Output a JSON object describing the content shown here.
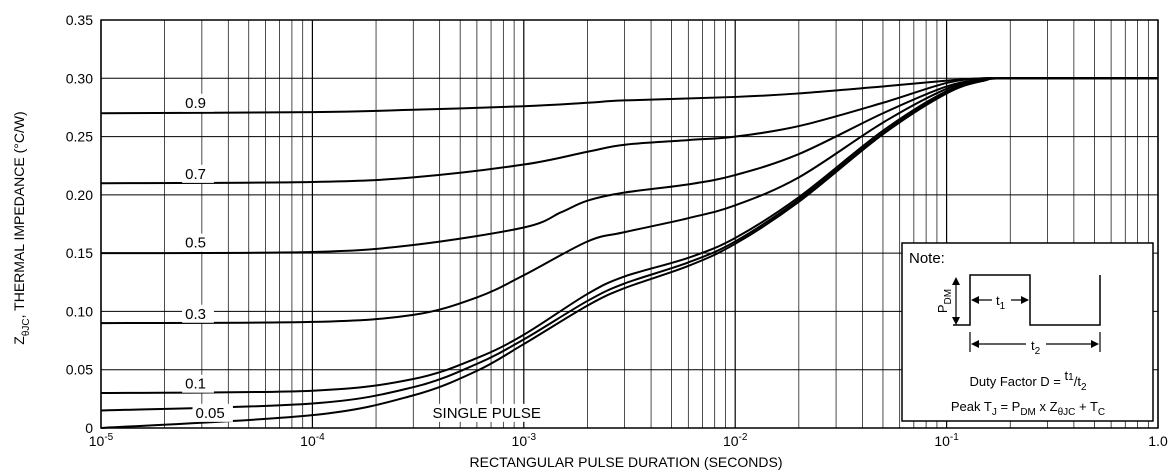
{
  "chart_data": {
    "type": "line",
    "title": "",
    "xlabel": "RECTANGULAR PULSE DURATION (SECONDS)",
    "ylabel": "ZθJC, THERMAL IMPEDANCE (°C/W)",
    "ylabel_parts": {
      "z": "Z",
      "sub": "θJC",
      "rest": ", THERMAL IMPEDANCE (°C/W)"
    },
    "x_scale": "log",
    "xlim": [
      1e-05,
      1.0
    ],
    "ylim": [
      0,
      0.35
    ],
    "grid": true,
    "x_ticks": [
      {
        "value": 1e-05,
        "base": "10",
        "exp": "-5"
      },
      {
        "value": 0.0001,
        "base": "10",
        "exp": "-4"
      },
      {
        "value": 0.001,
        "base": "10",
        "exp": "-3"
      },
      {
        "value": 0.01,
        "base": "10",
        "exp": "-2"
      },
      {
        "value": 0.1,
        "base": "10",
        "exp": "-1"
      },
      {
        "value": 1.0,
        "base": "1.0",
        "exp": ""
      }
    ],
    "y_ticks": [
      {
        "value": 0,
        "label": "0"
      },
      {
        "value": 0.05,
        "label": "0.05"
      },
      {
        "value": 0.1,
        "label": "0.10"
      },
      {
        "value": 0.15,
        "label": "0.15"
      },
      {
        "value": 0.2,
        "label": "0.20"
      },
      {
        "value": 0.25,
        "label": "0.25"
      },
      {
        "value": 0.3,
        "label": "0.30"
      },
      {
        "value": 0.35,
        "label": "0.35"
      }
    ],
    "series": [
      {
        "label": "0.9",
        "label_x": 2.5e-05,
        "label_y": 0.279,
        "x": [
          1e-05,
          0.0001,
          0.0003,
          0.001,
          0.002,
          0.003,
          0.01,
          0.02,
          0.05,
          0.1,
          0.15,
          0.2,
          1.0
        ],
        "y": [
          0.27,
          0.271,
          0.273,
          0.276,
          0.279,
          0.281,
          0.284,
          0.287,
          0.293,
          0.298,
          0.3,
          0.3,
          0.3
        ]
      },
      {
        "label": "0.7",
        "label_x": 2.5e-05,
        "label_y": 0.218,
        "x": [
          1e-05,
          0.0001,
          0.0003,
          0.001,
          0.002,
          0.003,
          0.006,
          0.01,
          0.02,
          0.05,
          0.1,
          0.15,
          0.2,
          1.0
        ],
        "y": [
          0.21,
          0.211,
          0.215,
          0.226,
          0.237,
          0.243,
          0.247,
          0.25,
          0.259,
          0.279,
          0.296,
          0.3,
          0.3,
          0.3
        ]
      },
      {
        "label": "0.5",
        "label_x": 2.5e-05,
        "label_y": 0.159,
        "x": [
          1e-05,
          0.0001,
          0.0003,
          0.001,
          0.0015,
          0.002,
          0.003,
          0.006,
          0.01,
          0.02,
          0.05,
          0.1,
          0.15,
          0.2,
          1.0
        ],
        "y": [
          0.15,
          0.151,
          0.157,
          0.172,
          0.185,
          0.195,
          0.202,
          0.209,
          0.217,
          0.235,
          0.27,
          0.293,
          0.299,
          0.3,
          0.3
        ]
      },
      {
        "label": "0.3",
        "label_x": 2.5e-05,
        "label_y": 0.098,
        "x": [
          1e-05,
          0.0001,
          0.0003,
          0.0006,
          0.001,
          0.002,
          0.003,
          0.006,
          0.01,
          0.02,
          0.05,
          0.1,
          0.15,
          0.2,
          1.0
        ],
        "y": [
          0.09,
          0.091,
          0.097,
          0.112,
          0.131,
          0.16,
          0.168,
          0.18,
          0.191,
          0.215,
          0.262,
          0.291,
          0.299,
          0.3,
          0.3
        ]
      },
      {
        "label": "0.1",
        "label_x": 2.5e-05,
        "label_y": 0.038,
        "x": [
          1e-05,
          0.0001,
          0.0003,
          0.0006,
          0.001,
          0.002,
          0.003,
          0.006,
          0.01,
          0.02,
          0.05,
          0.1,
          0.15,
          0.2,
          1.0
        ],
        "y": [
          0.03,
          0.032,
          0.042,
          0.06,
          0.08,
          0.115,
          0.13,
          0.146,
          0.163,
          0.198,
          0.255,
          0.289,
          0.298,
          0.3,
          0.3
        ]
      },
      {
        "label": "0.05",
        "label_x": 2.8e-05,
        "label_y": 0.013,
        "x": [
          1e-05,
          0.0001,
          0.0003,
          0.0006,
          0.001,
          0.002,
          0.003,
          0.006,
          0.01,
          0.02,
          0.05,
          0.1,
          0.15,
          0.2,
          1.0
        ],
        "y": [
          0.015,
          0.021,
          0.035,
          0.055,
          0.076,
          0.109,
          0.124,
          0.142,
          0.16,
          0.196,
          0.253,
          0.288,
          0.298,
          0.3,
          0.3
        ]
      },
      {
        "label": "SINGLE PULSE",
        "label_x": 0.00037,
        "label_y": 0.013,
        "x": [
          1e-05,
          0.0001,
          0.0003,
          0.0006,
          0.001,
          0.002,
          0.003,
          0.006,
          0.01,
          0.02,
          0.05,
          0.1,
          0.15,
          0.2,
          1.0
        ],
        "y": [
          0.0,
          0.011,
          0.028,
          0.049,
          0.072,
          0.105,
          0.12,
          0.139,
          0.158,
          0.194,
          0.252,
          0.287,
          0.298,
          0.3,
          0.3
        ]
      }
    ],
    "note": {
      "title": "Note:",
      "pdm_label": "P",
      "pdm_sub": "DM",
      "t1_label": "t",
      "t1_sub": "1",
      "t2_label": "t",
      "t2_sub": "2",
      "duty_prefix": "Duty Factor  D = ",
      "duty_num": "t",
      "duty_num_sub": "1",
      "duty_den": "t",
      "duty_den_sub": "2",
      "peak_a": "Peak T",
      "peak_a_sub": "J",
      "peak_b": " = P",
      "peak_b_sub": "DM",
      "peak_c": " x Z",
      "peak_c_sub": "θJC",
      "peak_d": " + T",
      "peak_d_sub": "C"
    }
  }
}
